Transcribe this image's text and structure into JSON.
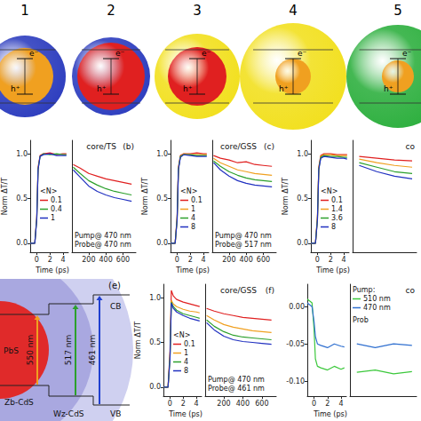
{
  "diagram": {
    "structures": [
      {
        "label": "1",
        "shell_color": "#2f3fbf",
        "core_color": "#f0a020"
      },
      {
        "label": "2",
        "shell_color": "#2f3fbf",
        "core_color": "#e02020"
      },
      {
        "label": "3",
        "shell_color": "#f2e020",
        "core_color": "#e02020"
      },
      {
        "label": "4",
        "shell_color": "#f2e020",
        "core_color": "#f0a020"
      },
      {
        "label": "5",
        "shell_color": "#2fb040",
        "core_color": "#f0a020"
      }
    ],
    "electron_label": "e⁻",
    "hole_label": "h⁺"
  },
  "band_diagram": {
    "panel": "(e)",
    "regions": [
      "PbS",
      "Zb-CdS",
      "Wz-CdS"
    ],
    "band_labels": [
      "CB",
      "VB"
    ],
    "transitions": [
      {
        "label": "550 nm",
        "color": "#f0a020"
      },
      {
        "label": "517 nm",
        "color": "#2ca02c"
      },
      {
        "label": "461 nm",
        "color": "#2040d0"
      }
    ]
  },
  "chart_data": [
    {
      "type": "line",
      "panel": "(b)",
      "title": "core/TS",
      "x": [
        -1,
        -0.3,
        0,
        0.2,
        0.5,
        1,
        2,
        3,
        4,
        4.5,
        20,
        100,
        200,
        300,
        400,
        500,
        600,
        700
      ],
      "xlim": [
        -1,
        4.8
      ],
      "xticks": [
        0,
        2,
        4
      ],
      "x2lim": [
        5,
        750
      ],
      "x2ticks": [
        200,
        400,
        600
      ],
      "ylim": [
        -0.1,
        1.15
      ],
      "yticks": [
        {
          "value": 0,
          "label": "0.0"
        },
        {
          "value": 0.5,
          "label": "0.5"
        },
        {
          "value": 1,
          "label": "1.0"
        }
      ],
      "x_label": "Time (ps)",
      "y_label": "Norm ΔT/T",
      "legend_title": "<N>",
      "annotations": [
        "Pump@ 470 nm",
        "Probe@ 470 nm"
      ],
      "series": [
        {
          "name": "0.1",
          "color": "#e02020",
          "values": [
            0,
            0,
            0.3,
            0.85,
            0.98,
            1.0,
            1.01,
            0.99,
            1.0,
            1.0,
            0.88,
            0.84,
            0.78,
            0.75,
            0.72,
            0.7,
            0.68,
            0.66
          ]
        },
        {
          "name": "0.4",
          "color": "#2ca02c",
          "values": [
            0,
            0,
            0.28,
            0.83,
            0.97,
            1.0,
            0.99,
            1.0,
            0.99,
            0.99,
            0.85,
            0.78,
            0.7,
            0.65,
            0.61,
            0.58,
            0.56,
            0.54
          ]
        },
        {
          "name": "1",
          "color": "#2030c0",
          "values": [
            0,
            0,
            0.27,
            0.82,
            0.97,
            0.99,
            1.0,
            0.98,
            0.98,
            0.98,
            0.82,
            0.74,
            0.64,
            0.58,
            0.54,
            0.51,
            0.49,
            0.47
          ]
        }
      ]
    },
    {
      "type": "line",
      "panel": "(c)",
      "title": "core/GSS",
      "x": [
        -1,
        -0.3,
        0,
        0.2,
        0.5,
        1,
        2,
        3,
        4,
        4.5,
        20,
        100,
        200,
        300,
        400,
        500,
        600,
        700
      ],
      "xlim": [
        -1,
        4.8
      ],
      "xticks": [
        0,
        2,
        4
      ],
      "x2lim": [
        5,
        750
      ],
      "x2ticks": [
        200,
        400,
        600
      ],
      "ylim": [
        -0.1,
        1.15
      ],
      "yticks": [
        {
          "value": 0,
          "label": "0.0"
        },
        {
          "value": 0.5,
          "label": "0.5"
        },
        {
          "value": 1,
          "label": "1.0"
        }
      ],
      "x_label": "Time (ps)",
      "y_label": "Norm ΔT/T",
      "legend_title": "<N>",
      "annotations": [
        "Pump@ 470 nm",
        "Probe@ 517 nm"
      ],
      "series": [
        {
          "name": "0.1",
          "color": "#e02020",
          "values": [
            0,
            0,
            0.3,
            0.85,
            0.98,
            1.0,
            1.0,
            1.01,
            1.0,
            1.0,
            0.98,
            0.95,
            0.93,
            0.9,
            0.91,
            0.88,
            0.87,
            0.86
          ]
        },
        {
          "name": "1",
          "color": "#f0a020",
          "values": [
            0,
            0,
            0.28,
            0.84,
            0.97,
            1.0,
            0.99,
            0.99,
            0.99,
            0.99,
            0.95,
            0.9,
            0.86,
            0.82,
            0.8,
            0.78,
            0.77,
            0.76
          ]
        },
        {
          "name": "4",
          "color": "#2ca02c",
          "values": [
            0,
            0,
            0.27,
            0.83,
            0.97,
            0.99,
            0.99,
            0.98,
            0.98,
            0.98,
            0.92,
            0.86,
            0.8,
            0.76,
            0.73,
            0.71,
            0.7,
            0.69
          ]
        },
        {
          "name": "8",
          "color": "#2030c0",
          "values": [
            0,
            0,
            0.26,
            0.82,
            0.96,
            0.99,
            0.98,
            0.97,
            0.97,
            0.97,
            0.9,
            0.82,
            0.75,
            0.7,
            0.67,
            0.65,
            0.64,
            0.63
          ]
        }
      ]
    },
    {
      "type": "line",
      "title": "co",
      "x": [
        -1,
        -0.3,
        0,
        0.2,
        0.5,
        1,
        2,
        3,
        4,
        4.5,
        20,
        60,
        100,
        140
      ],
      "xlim": [
        -1,
        4.8
      ],
      "xticks": [
        0,
        2,
        4
      ],
      "x2lim": [
        5,
        150
      ],
      "x2ticks": [],
      "ylim": [
        -0.1,
        1.15
      ],
      "yticks": [
        {
          "value": 0,
          "label": "0.0"
        },
        {
          "value": 0.5,
          "label": "0.5"
        },
        {
          "value": 1,
          "label": "1.0"
        }
      ],
      "x_label": "Time (ps)",
      "y_label": "Norm ΔT/T",
      "legend_title": "<N>",
      "series": [
        {
          "name": "0.1",
          "color": "#e02020",
          "values": [
            0,
            0,
            0.3,
            0.85,
            0.98,
            1.0,
            1.0,
            0.99,
            0.99,
            0.99,
            0.97,
            0.95,
            0.93,
            0.92
          ]
        },
        {
          "name": "1.4",
          "color": "#f0a020",
          "values": [
            0,
            0,
            0.28,
            0.84,
            0.97,
            0.99,
            0.99,
            0.98,
            0.98,
            0.98,
            0.94,
            0.9,
            0.87,
            0.85
          ]
        },
        {
          "name": "3.6",
          "color": "#2ca02c",
          "values": [
            0,
            0,
            0.27,
            0.83,
            0.96,
            0.98,
            0.97,
            0.97,
            0.96,
            0.96,
            0.9,
            0.85,
            0.8,
            0.78
          ]
        },
        {
          "name": "8",
          "color": "#2030c0",
          "values": [
            0,
            0,
            0.26,
            0.82,
            0.95,
            0.97,
            0.96,
            0.95,
            0.95,
            0.94,
            0.87,
            0.8,
            0.75,
            0.72
          ]
        }
      ]
    },
    {
      "type": "line",
      "panel": "(f)",
      "title": "core/GSS",
      "x": [
        -1,
        -0.3,
        0,
        0.2,
        0.5,
        1,
        2,
        3,
        4,
        4.5,
        20,
        100,
        200,
        300,
        400,
        500,
        600,
        700
      ],
      "xlim": [
        -1,
        4.8
      ],
      "xticks": [
        0,
        2,
        4
      ],
      "x2lim": [
        5,
        750
      ],
      "x2ticks": [
        200,
        400,
        600
      ],
      "ylim": [
        -0.1,
        1.15
      ],
      "yticks": [
        {
          "value": 0,
          "label": "0.0"
        },
        {
          "value": 0.5,
          "label": "0.5"
        },
        {
          "value": 1,
          "label": "1.0"
        }
      ],
      "x_label": "Time (ps)",
      "y_label": "Norm ΔT/T",
      "legend_title": "<N>",
      "annotations": [
        "Pump@ 470 nm",
        "Probe@ 461 nm"
      ],
      "series": [
        {
          "name": "0.1",
          "color": "#e02020",
          "values": [
            0,
            0,
            0.4,
            1.08,
            1.02,
            0.98,
            0.95,
            0.93,
            0.91,
            0.9,
            0.88,
            0.85,
            0.82,
            0.8,
            0.78,
            0.77,
            0.76,
            0.75
          ]
        },
        {
          "name": "1",
          "color": "#f0a020",
          "values": [
            0,
            0,
            0.35,
            0.97,
            0.93,
            0.9,
            0.87,
            0.85,
            0.84,
            0.83,
            0.8,
            0.75,
            0.7,
            0.67,
            0.65,
            0.63,
            0.62,
            0.61
          ]
        },
        {
          "name": "4",
          "color": "#2ca02c",
          "values": [
            0,
            0,
            0.33,
            0.95,
            0.9,
            0.86,
            0.82,
            0.8,
            0.78,
            0.77,
            0.75,
            0.68,
            0.62,
            0.58,
            0.56,
            0.55,
            0.54,
            0.53
          ]
        },
        {
          "name": "8",
          "color": "#2030c0",
          "values": [
            0,
            0,
            0.32,
            0.94,
            0.88,
            0.84,
            0.8,
            0.77,
            0.75,
            0.74,
            0.72,
            0.64,
            0.57,
            0.53,
            0.51,
            0.5,
            0.49,
            0.48
          ]
        }
      ]
    },
    {
      "type": "line",
      "title": "co",
      "x": [
        -1,
        -0.3,
        0,
        0.2,
        0.5,
        1,
        2,
        3,
        4,
        4.5,
        20,
        60,
        100,
        140
      ],
      "xlim": [
        -1,
        4.8
      ],
      "xticks": [
        0,
        2,
        4
      ],
      "x2lim": [
        5,
        150
      ],
      "x2ticks": [],
      "ylim": [
        -0.12,
        0.03
      ],
      "yticks": [
        {
          "value": -0.1,
          "label": "-0.10"
        },
        {
          "value": -0.05,
          "label": "-0.05"
        },
        {
          "value": 0,
          "label": "0.00"
        }
      ],
      "x_label": "Time (ps)",
      "legend_title": "Pump:",
      "annotations": [
        "Prob"
      ],
      "series": [
        {
          "name": "510 nm",
          "color": "#3cc83c",
          "values": [
            0.01,
            0.005,
            -0.03,
            -0.07,
            -0.08,
            -0.082,
            -0.085,
            -0.08,
            -0.084,
            -0.082,
            -0.088,
            -0.085,
            -0.09,
            -0.087
          ]
        },
        {
          "name": "470 nm",
          "color": "#3070d0",
          "values": [
            0.005,
            0,
            -0.02,
            -0.04,
            -0.05,
            -0.052,
            -0.055,
            -0.05,
            -0.053,
            -0.054,
            -0.05,
            -0.055,
            -0.05,
            -0.052
          ]
        }
      ]
    }
  ]
}
